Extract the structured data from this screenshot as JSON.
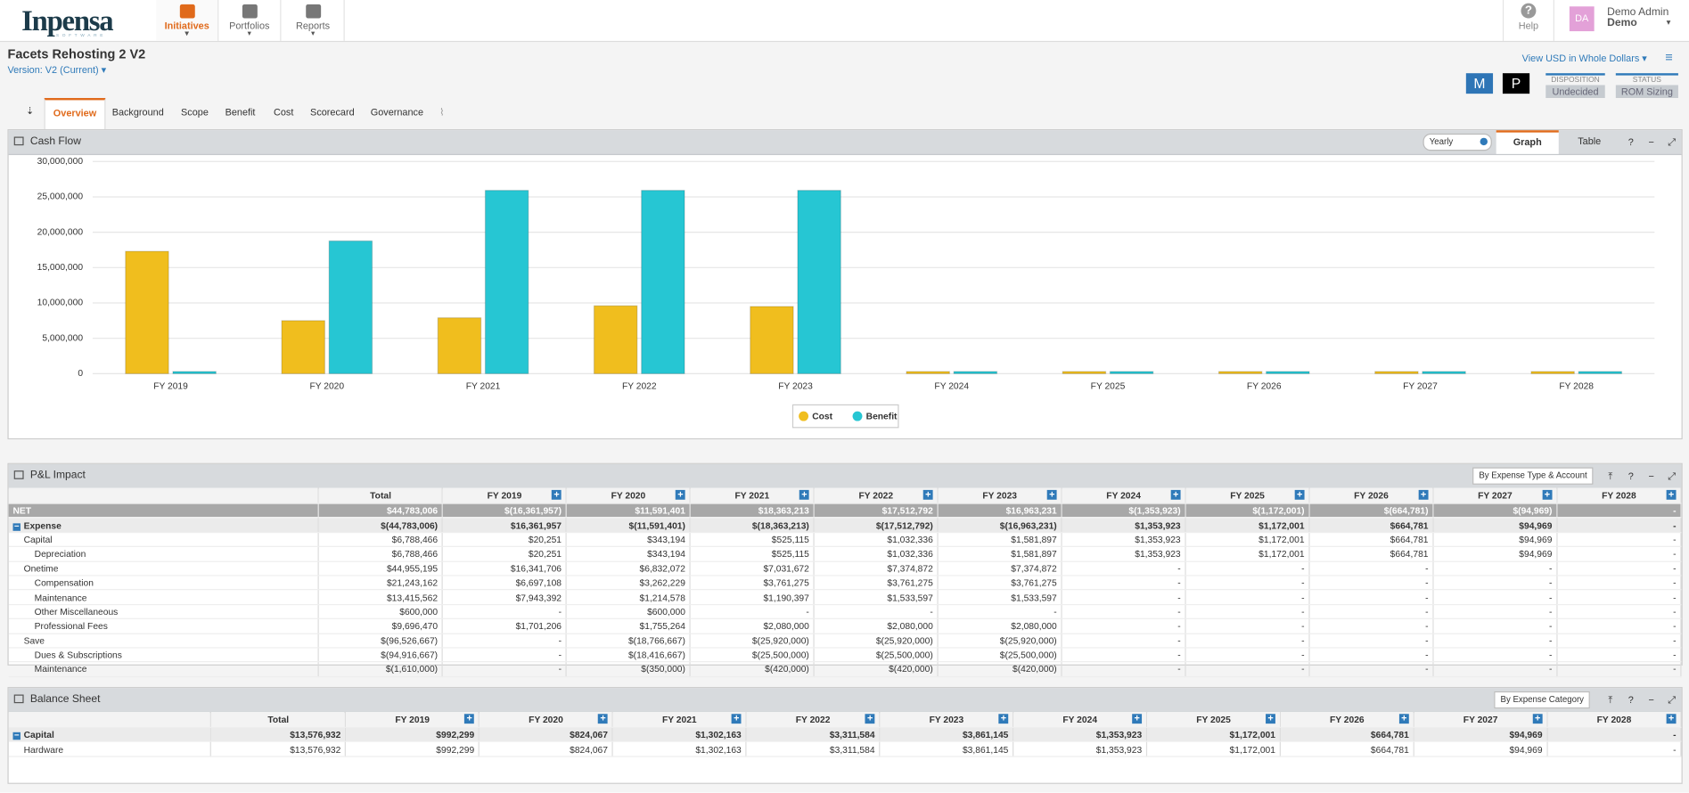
{
  "nav": {
    "logo": "Inpensa",
    "logo_sub": "SOFTWARE",
    "items": [
      "Initiatives",
      "Portfolios",
      "Reports"
    ],
    "help": "Help",
    "user_initials": "DA",
    "user_name": "Demo Admin",
    "user_org": "Demo"
  },
  "header": {
    "title": "Facets Rehosting 2 V2",
    "version": "Version: V2 (Current)",
    "currency": "View USD in Whole Dollars",
    "badges": [
      "M",
      "P"
    ],
    "disposition_label": "DISPOSITION",
    "disposition": "Undecided",
    "status_label": "STATUS",
    "status": "ROM Sizing"
  },
  "tabs": [
    "Overview",
    "Background",
    "Scope",
    "Benefit",
    "Cost",
    "Scorecard",
    "Governance"
  ],
  "cash_flow": {
    "title": "Cash Flow",
    "period": "Yearly",
    "views": [
      "Graph",
      "Table"
    ]
  },
  "chart_data": {
    "type": "bar",
    "categories": [
      "FY 2019",
      "FY 2020",
      "FY 2021",
      "FY 2022",
      "FY 2023",
      "FY 2024",
      "FY 2025",
      "FY 2026",
      "FY 2027",
      "FY 2028"
    ],
    "series": [
      {
        "name": "Cost",
        "color": "#f0be1e",
        "values": [
          17300000,
          7500000,
          7900000,
          9600000,
          9500000,
          0,
          0,
          0,
          0,
          0
        ]
      },
      {
        "name": "Benefit",
        "color": "#26c6d3",
        "values": [
          0,
          18766667,
          25920000,
          25920000,
          25920000,
          0,
          0,
          0,
          0,
          0
        ]
      }
    ],
    "ylim": [
      0,
      30000000
    ],
    "yticks": [
      0,
      {
        "value": 5000000,
        "label": "5,000,000"
      },
      {
        "value": 10000000,
        "label": "10,000,000"
      },
      {
        "value": 15000000,
        "label": "15,000,000"
      },
      {
        "value": 20000000,
        "label": "20,000,000"
      },
      {
        "value": 25000000,
        "label": "25,000,000"
      },
      {
        "value": 30000000,
        "label": "30,000,000"
      }
    ],
    "grid": true
  },
  "pl_impact": {
    "title": "P&L Impact",
    "view": "By Expense Type & Account",
    "columns": [
      "Total",
      "FY 2019",
      "FY 2020",
      "FY 2021",
      "FY 2022",
      "FY 2023",
      "FY 2024",
      "FY 2025",
      "FY 2026",
      "FY 2027",
      "FY 2028"
    ],
    "rows": [
      {
        "label": "NET",
        "cells": [
          "$44,783,006",
          "$(16,361,957)",
          "$11,591,401",
          "$18,363,213",
          "$17,512,792",
          "$16,963,231",
          "$(1,353,923)",
          "$(1,172,001)",
          "$(664,781)",
          "$(94,969)",
          "-"
        ]
      },
      {
        "label": "Expense",
        "cells": [
          "$(44,783,006)",
          "$16,361,957",
          "$(11,591,401)",
          "$(18,363,213)",
          "$(17,512,792)",
          "$(16,963,231)",
          "$1,353,923",
          "$1,172,001",
          "$664,781",
          "$94,969",
          "-"
        ]
      },
      {
        "label": "Capital",
        "cells": [
          "$6,788,466",
          "$20,251",
          "$343,194",
          "$525,115",
          "$1,032,336",
          "$1,581,897",
          "$1,353,923",
          "$1,172,001",
          "$664,781",
          "$94,969",
          "-"
        ]
      },
      {
        "label": "Depreciation",
        "cells": [
          "$6,788,466",
          "$20,251",
          "$343,194",
          "$525,115",
          "$1,032,336",
          "$1,581,897",
          "$1,353,923",
          "$1,172,001",
          "$664,781",
          "$94,969",
          "-"
        ]
      },
      {
        "label": "Onetime",
        "cells": [
          "$44,955,195",
          "$16,341,706",
          "$6,832,072",
          "$7,031,672",
          "$7,374,872",
          "$7,374,872",
          "-",
          "-",
          "-",
          "-",
          "-"
        ]
      },
      {
        "label": "Compensation",
        "cells": [
          "$21,243,162",
          "$6,697,108",
          "$3,262,229",
          "$3,761,275",
          "$3,761,275",
          "$3,761,275",
          "-",
          "-",
          "-",
          "-",
          "-"
        ]
      },
      {
        "label": "Maintenance",
        "cells": [
          "$13,415,562",
          "$7,943,392",
          "$1,214,578",
          "$1,190,397",
          "$1,533,597",
          "$1,533,597",
          "-",
          "-",
          "-",
          "-",
          "-"
        ]
      },
      {
        "label": "Other Miscellaneous",
        "cells": [
          "$600,000",
          "-",
          "$600,000",
          "-",
          "-",
          "-",
          "-",
          "-",
          "-",
          "-",
          "-"
        ]
      },
      {
        "label": "Professional Fees",
        "cells": [
          "$9,696,470",
          "$1,701,206",
          "$1,755,264",
          "$2,080,000",
          "$2,080,000",
          "$2,080,000",
          "-",
          "-",
          "-",
          "-",
          "-"
        ]
      },
      {
        "label": "Save",
        "cells": [
          "$(96,526,667)",
          "-",
          "$(18,766,667)",
          "$(25,920,000)",
          "$(25,920,000)",
          "$(25,920,000)",
          "-",
          "-",
          "-",
          "-",
          "-"
        ]
      },
      {
        "label": "Dues & Subscriptions",
        "cells": [
          "$(94,916,667)",
          "-",
          "$(18,416,667)",
          "$(25,500,000)",
          "$(25,500,000)",
          "$(25,500,000)",
          "-",
          "-",
          "-",
          "-",
          "-"
        ]
      },
      {
        "label": "Maintenance",
        "cells": [
          "$(1,610,000)",
          "-",
          "$(350,000)",
          "$(420,000)",
          "$(420,000)",
          "$(420,000)",
          "-",
          "-",
          "-",
          "-",
          "-"
        ]
      }
    ]
  },
  "balance_sheet": {
    "title": "Balance Sheet",
    "view": "By Expense Category",
    "columns": [
      "Total",
      "FY 2019",
      "FY 2020",
      "FY 2021",
      "FY 2022",
      "FY 2023",
      "FY 2024",
      "FY 2025",
      "FY 2026",
      "FY 2027",
      "FY 2028"
    ],
    "rows": [
      {
        "label": "Capital",
        "cells": [
          "$13,576,932",
          "$992,299",
          "$824,067",
          "$1,302,163",
          "$3,311,584",
          "$3,861,145",
          "$1,353,923",
          "$1,172,001",
          "$664,781",
          "$94,969",
          "-"
        ]
      },
      {
        "label": "Hardware",
        "cells": [
          "$13,576,932",
          "$992,299",
          "$824,067",
          "$1,302,163",
          "$3,311,584",
          "$3,861,145",
          "$1,353,923",
          "$1,172,001",
          "$664,781",
          "$94,969",
          "-"
        ]
      }
    ]
  }
}
